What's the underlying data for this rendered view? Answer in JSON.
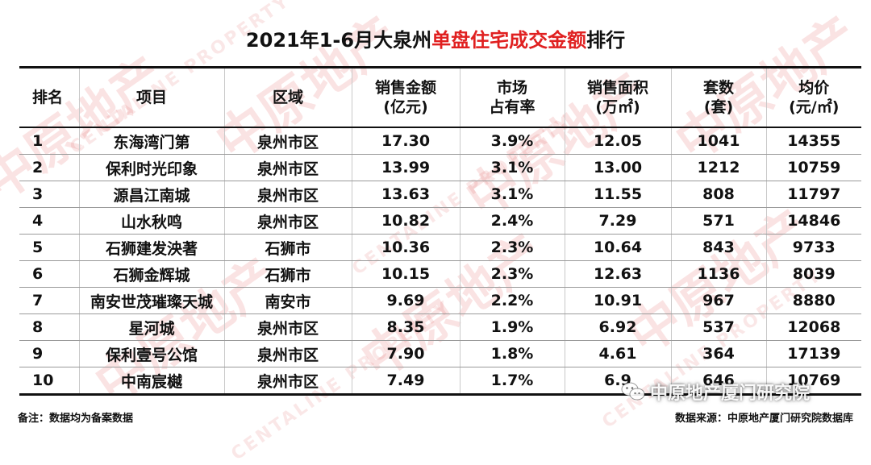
{
  "title": {
    "part1": "2021年1-6月大泉州",
    "highlight": "单盘住宅成交金额",
    "part2": "排行"
  },
  "colors": {
    "highlight": "#e02020",
    "watermark": "#d62828"
  },
  "watermark": {
    "main": "中原地产",
    "sub": "CENTALINE PROPERTY"
  },
  "table": {
    "headers": [
      {
        "line1": "排名",
        "line2": ""
      },
      {
        "line1": "项目",
        "line2": ""
      },
      {
        "line1": "区域",
        "line2": ""
      },
      {
        "line1": "销售金额",
        "line2": "(亿元)"
      },
      {
        "line1": "市场",
        "line2": "占有率"
      },
      {
        "line1": "销售面积",
        "line2": "(万㎡)"
      },
      {
        "line1": "套数",
        "line2": "(套)"
      },
      {
        "line1": "均价",
        "line2": "(元/㎡)"
      }
    ],
    "rows": [
      [
        "1",
        "东海湾门第",
        "泉州市区",
        "17.30",
        "3.9%",
        "12.05",
        "1041",
        "14355"
      ],
      [
        "2",
        "保利时光印象",
        "泉州市区",
        "13.99",
        "3.1%",
        "13.00",
        "1212",
        "10759"
      ],
      [
        "3",
        "源昌江南城",
        "泉州市区",
        "13.63",
        "3.1%",
        "11.55",
        "808",
        "11797"
      ],
      [
        "4",
        "山水秋鸣",
        "泉州市区",
        "10.82",
        "2.4%",
        "7.29",
        "571",
        "14846"
      ],
      [
        "5",
        "石狮建发泱著",
        "石狮市",
        "10.36",
        "2.3%",
        "10.64",
        "843",
        "9733"
      ],
      [
        "6",
        "石狮金辉城",
        "石狮市",
        "10.15",
        "2.3%",
        "12.63",
        "1136",
        "8039"
      ],
      [
        "7",
        "南安世茂璀璨天城",
        "南安市",
        "9.69",
        "2.2%",
        "10.91",
        "967",
        "8880"
      ],
      [
        "8",
        "星河城",
        "泉州市区",
        "8.35",
        "1.9%",
        "6.92",
        "537",
        "12068"
      ],
      [
        "9",
        "保利壹号公馆",
        "泉州市区",
        "7.90",
        "1.8%",
        "4.61",
        "364",
        "17139"
      ],
      [
        "10",
        "中南宸樾",
        "泉州市区",
        "7.49",
        "1.7%",
        "6.9",
        "646",
        "10769"
      ]
    ]
  },
  "footer": {
    "note": "备注：数据均为备案数据",
    "source": "数据来源：中原地产厦门研究院数据库"
  },
  "wechat_badge": {
    "icon": "wechat-icon",
    "text": "中原地产厦门研究院"
  }
}
